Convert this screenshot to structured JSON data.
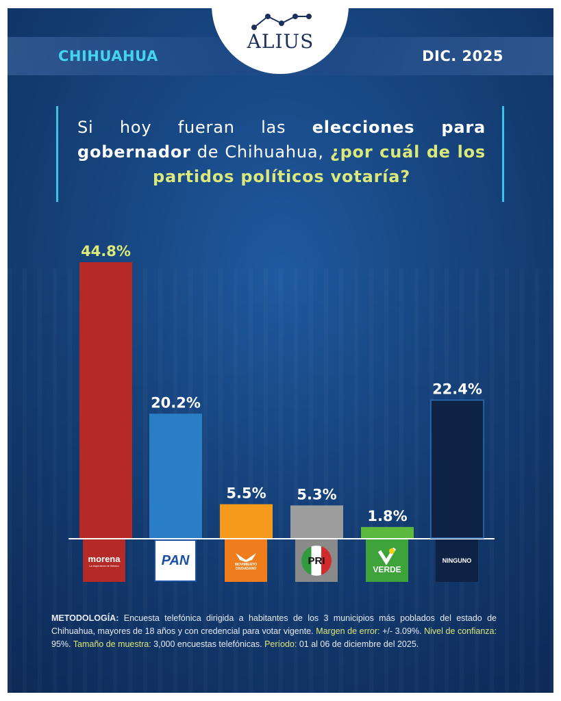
{
  "header": {
    "brand": "ALIUS",
    "region": "CHIHUAHUA",
    "date": "DIC. 2025"
  },
  "question": {
    "part1": "Si hoy fueran las ",
    "bold1": "elecciones para gobernador",
    "part2": " de Chihuahua, ",
    "highlight": "¿por cuál de los partidos políticos votaría?"
  },
  "chart_data": {
    "type": "bar",
    "title": "Si hoy fueran las elecciones para gobernador de Chihuahua, ¿por cuál de los partidos políticos votaría?",
    "categories": [
      "morena",
      "PAN",
      "Movimiento Ciudadano",
      "PRI",
      "VERDE",
      "NINGUNO"
    ],
    "values": [
      44.8,
      20.2,
      5.5,
      5.3,
      1.8,
      22.4
    ],
    "labels": [
      "44.8%",
      "20.2%",
      "5.5%",
      "5.3%",
      "1.8%",
      "22.4%"
    ],
    "colors": [
      "#b52a27",
      "#2a7fc4",
      "#f59a1d",
      "#9d9d9d",
      "#5cb93d",
      "#0e2246"
    ],
    "label_colors": [
      "#dbe87a",
      "#ffffff",
      "#ffffff",
      "#ffffff",
      "#ffffff",
      "#ffffff"
    ],
    "ylim": [
      0,
      48
    ]
  },
  "logos": {
    "morena": "morena",
    "morena_sub": "La esperanza de México",
    "pan": "PAN",
    "mc_line1": "MOVIMIENTO",
    "mc_line2": "CIUDADANO",
    "pri": "PRI",
    "verde": "VERDE",
    "ninguno": "NINGUNO"
  },
  "methodology": {
    "label": "METODOLOGÍA:",
    "text": " Encuesta telefónica dirigida a habitantes de los 3 municipios más poblados del estado de Chihuahua, mayores de 18 años y con credencial para votar vigente. ",
    "margin_label": "Margen de error:",
    "margin_value": " +/- 3.09%. ",
    "conf_label": "Nivel de confianza:",
    "conf_value": " 95%. ",
    "sample_label": "Tamaño de muestra:",
    "sample_value": " 3,000 encuestas telefónicas. ",
    "period_label": "Período:",
    "period_value": " 01 al 06 de diciembre del 2025."
  }
}
